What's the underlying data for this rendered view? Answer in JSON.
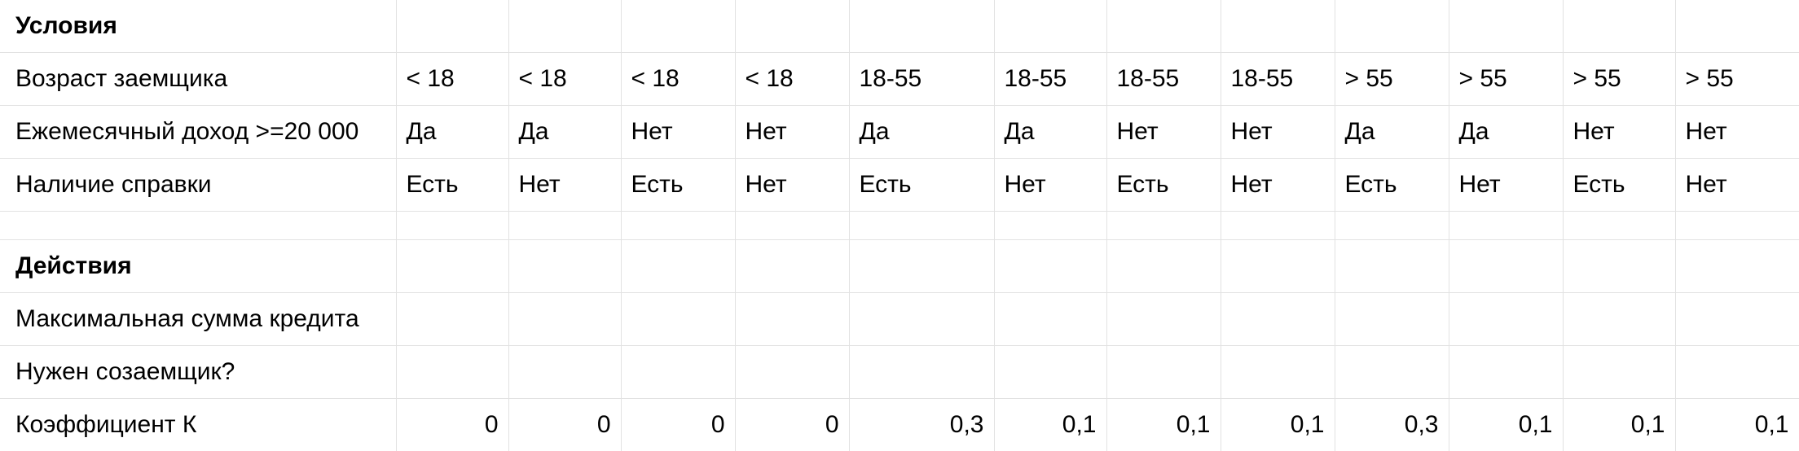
{
  "sheet": {
    "rows": [
      {
        "label": "Условия",
        "bold": true,
        "cells": [
          "",
          "",
          "",
          "",
          "",
          "",
          "",
          "",
          "",
          "",
          "",
          ""
        ]
      },
      {
        "label": "Возраст заемщика",
        "cells": [
          "< 18",
          "< 18",
          "< 18",
          "< 18",
          "18-55",
          "18-55",
          "18-55",
          "18-55",
          "> 55",
          "> 55",
          "> 55",
          "> 55"
        ]
      },
      {
        "label": "Ежемесячный доход >=20 000",
        "cells": [
          "Да",
          "Да",
          "Нет",
          "Нет",
          "Да",
          "Да",
          "Нет",
          "Нет",
          "Да",
          "Да",
          "Нет",
          "Нет"
        ]
      },
      {
        "label": "Наличие справки",
        "cells": [
          "Есть",
          "Нет",
          "Есть",
          "Нет",
          "Есть",
          "Нет",
          "Есть",
          "Нет",
          "Есть",
          "Нет",
          "Есть",
          "Нет"
        ]
      },
      {
        "label": "",
        "cells": [
          "",
          "",
          "",
          "",
          "",
          "",
          "",
          "",
          "",
          "",
          "",
          ""
        ]
      },
      {
        "label": "Действия",
        "bold": true,
        "cells": [
          "",
          "",
          "",
          "",
          "",
          "",
          "",
          "",
          "",
          "",
          "",
          ""
        ]
      },
      {
        "label": "Максимальная сумма кредита",
        "cells": [
          "",
          "",
          "",
          "",
          "",
          "",
          "",
          "",
          "",
          "",
          "",
          ""
        ]
      },
      {
        "label": "Нужен созаемщик?",
        "cells": [
          "",
          "",
          "",
          "",
          "",
          "",
          "",
          "",
          "",
          "",
          "",
          ""
        ]
      },
      {
        "label": "Коэффициент К",
        "numeric": true,
        "cells": [
          "0",
          "0",
          "0",
          "0",
          "0,3",
          "0,1",
          "0,1",
          "0,1",
          "0,3",
          "0,1",
          "0,1",
          "0,1"
        ]
      }
    ]
  }
}
